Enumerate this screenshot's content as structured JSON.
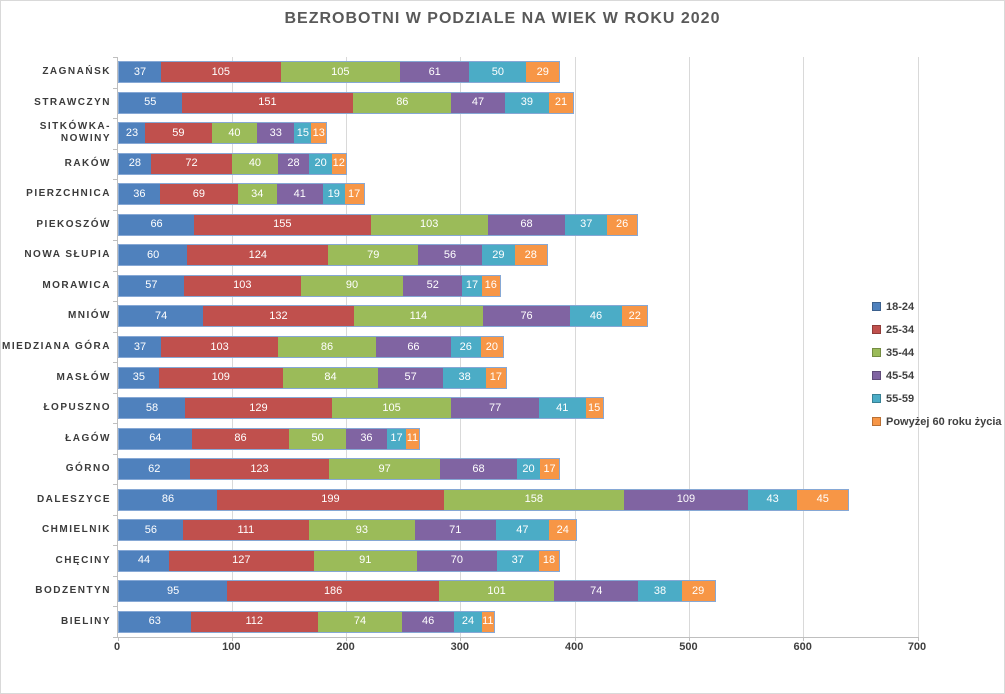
{
  "chart_data": {
    "type": "bar",
    "orientation": "horizontal",
    "stacked": true,
    "title": "BEZROBOTNI W PODZIALE NA WIEK W ROKU 2020",
    "categories": [
      "ZAGNAŃSK",
      "STRAWCZYN",
      "SITKÓWKA-NOWINY",
      "RAKÓW",
      "PIERZCHNICA",
      "PIEKOSZÓW",
      "NOWA SŁUPIA",
      "MORAWICA",
      "MNIÓW",
      "MIEDZIANA GÓRA",
      "MASŁÓW",
      "ŁOPUSZNO",
      "ŁAGÓW",
      "GÓRNO",
      "DALESZYCE",
      "CHMIELNIK",
      "CHĘCINY",
      "BODZENTYN",
      "BIELINY"
    ],
    "series": [
      {
        "name": "18-24",
        "color": "#4F81BD",
        "values": [
          37,
          55,
          23,
          28,
          36,
          66,
          60,
          57,
          74,
          37,
          35,
          58,
          64,
          62,
          86,
          56,
          44,
          95,
          63
        ]
      },
      {
        "name": "25-34",
        "color": "#C0504D",
        "values": [
          105,
          151,
          59,
          72,
          69,
          155,
          124,
          103,
          132,
          103,
          109,
          129,
          86,
          123,
          199,
          111,
          127,
          186,
          112
        ]
      },
      {
        "name": "35-44",
        "color": "#9BBB59",
        "values": [
          105,
          86,
          40,
          40,
          34,
          103,
          79,
          90,
          114,
          86,
          84,
          105,
          50,
          97,
          158,
          93,
          91,
          101,
          74
        ]
      },
      {
        "name": "45-54",
        "color": "#8064A2",
        "values": [
          61,
          47,
          33,
          28,
          41,
          68,
          56,
          52,
          76,
          66,
          57,
          77,
          36,
          68,
          109,
          71,
          70,
          74,
          46
        ]
      },
      {
        "name": "55-59",
        "color": "#4BACC6",
        "values": [
          50,
          39,
          15,
          20,
          19,
          37,
          29,
          17,
          46,
          26,
          38,
          41,
          17,
          20,
          43,
          47,
          37,
          38,
          24
        ]
      },
      {
        "name": "Powyżej 60 roku życia",
        "color": "#F79646",
        "values": [
          29,
          21,
          13,
          12,
          17,
          26,
          28,
          16,
          22,
          20,
          17,
          15,
          11,
          17,
          45,
          24,
          18,
          29,
          11
        ]
      }
    ],
    "x_ticks": [
      0,
      100,
      200,
      300,
      400,
      500,
      600,
      700
    ],
    "xlim": [
      0,
      700
    ],
    "grid": true,
    "legend_position": "right",
    "bar_border_color": "#86A8D5",
    "value_label_color": "#FFFFFF"
  }
}
